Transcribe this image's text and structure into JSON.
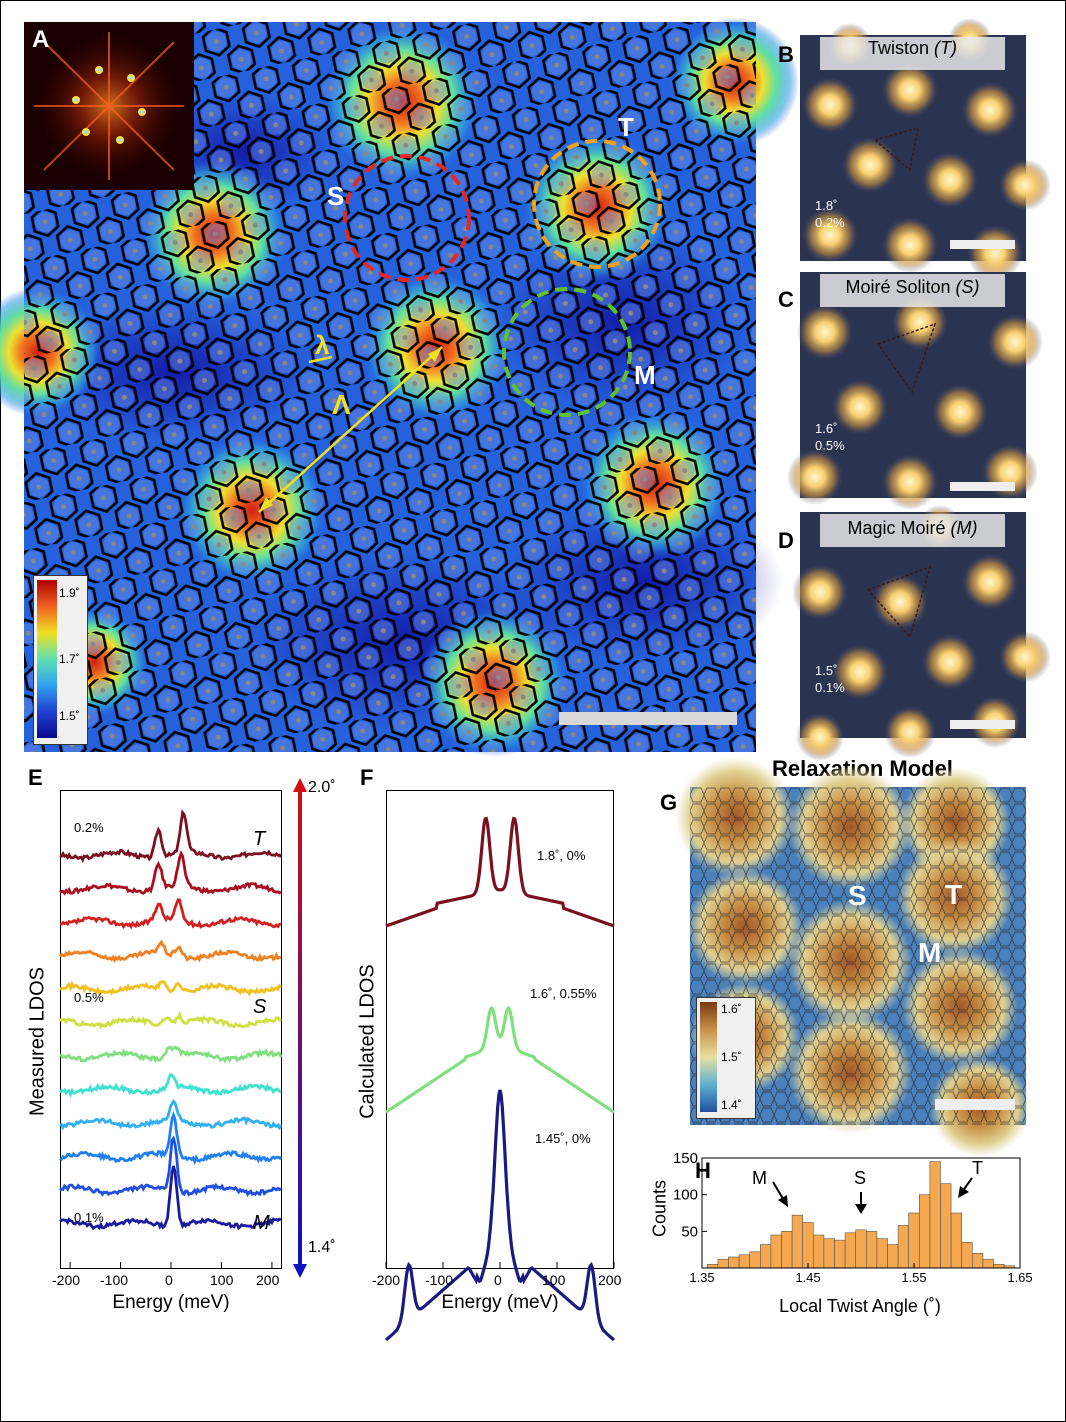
{
  "panels": {
    "A": {
      "letter": "A",
      "labels": {
        "S": "S",
        "T": "T",
        "M": "M",
        "lambda_small": "λ",
        "lambda_big": "Λ"
      },
      "colorbar": {
        "ticks": [
          "1.9˚",
          "1.7˚",
          "1.5˚"
        ],
        "colors": [
          "#c80000",
          "#f08020",
          "#f0e020",
          "#40d0e0",
          "#2040d0",
          "#0a0aa0"
        ]
      }
    },
    "B": {
      "letter": "B",
      "title": "Twiston ",
      "title_em": "(T)",
      "angle": "1.8˚",
      "strain": "0.2%"
    },
    "C": {
      "letter": "C",
      "title": "Moiré Soliton ",
      "title_em": "(S)",
      "angle": "1.6˚",
      "strain": "0.5%"
    },
    "D": {
      "letter": "D",
      "title": "Magic Moiré ",
      "title_em": "(M)",
      "angle": "1.5˚",
      "strain": "0.1%"
    },
    "E": {
      "letter": "E",
      "ylabel": "Measured LDOS",
      "xlabel": "Energy (meV)",
      "xticks": [
        "-200",
        "-100",
        "0",
        "100",
        "200"
      ],
      "labels": {
        "top": "0.2%",
        "mid": "0.5%",
        "bottom": "0.1%",
        "T": "T",
        "S": "S",
        "M": "M"
      },
      "arrow_top": "2.0˚",
      "arrow_bottom": "1.4˚"
    },
    "F": {
      "letter": "F",
      "ylabel": "Calculated LDOS",
      "xlabel": "Energy (meV)",
      "xticks": [
        "-200",
        "-100",
        "0",
        "100",
        "200"
      ],
      "curves": [
        "1.8˚, 0%",
        "1.6˚, 0.55%",
        "1.45˚, 0%"
      ]
    },
    "G": {
      "letter": "G",
      "title": "Relaxation Model",
      "labels": {
        "S": "S",
        "T": "T",
        "M": "M"
      },
      "colorbar": {
        "ticks": [
          "1.6˚",
          "1.5˚",
          "1.4˚"
        ]
      }
    },
    "H": {
      "letter": "H",
      "ylabel": "Counts",
      "xlabel": "Local Twist Angle (˚)",
      "annotations": {
        "M": "M",
        "S": "S",
        "T": "T"
      }
    }
  },
  "chart_data": [
    {
      "type": "bar",
      "panel": "H",
      "x": [
        1.36,
        1.37,
        1.38,
        1.39,
        1.4,
        1.41,
        1.42,
        1.43,
        1.44,
        1.45,
        1.46,
        1.47,
        1.48,
        1.49,
        1.5,
        1.51,
        1.52,
        1.53,
        1.54,
        1.55,
        1.56,
        1.57,
        1.58,
        1.59,
        1.6,
        1.61,
        1.62,
        1.63,
        1.64
      ],
      "values": [
        5,
        12,
        15,
        18,
        22,
        32,
        45,
        50,
        72,
        62,
        45,
        40,
        38,
        48,
        52,
        50,
        40,
        32,
        58,
        75,
        100,
        145,
        115,
        75,
        35,
        20,
        12,
        5,
        3
      ],
      "xlim": [
        1.35,
        1.65
      ],
      "ylim": [
        0,
        150
      ],
      "xticks": [
        1.35,
        1.45,
        1.55,
        1.65
      ],
      "yticks": [
        50,
        100,
        150
      ],
      "xlabel": "Local Twist Angle (˚)",
      "ylabel": "Counts",
      "color": "#f5a850"
    },
    {
      "type": "line",
      "panel": "F",
      "xlim": [
        -200,
        200
      ],
      "series": [
        {
          "name": "1.8˚, 0%",
          "color": "#7a1020",
          "peaks": [
            [
              -25,
              75,
              10
            ],
            [
              25,
              75,
              10
            ]
          ]
        },
        {
          "name": "1.6˚, 0.55%",
          "color": "#80e080",
          "peaks": [
            [
              -15,
              40,
              10
            ],
            [
              15,
              40,
              10
            ]
          ]
        },
        {
          "name": "1.45˚, 0%",
          "color": "#1a1a80",
          "peaks": [
            [
              0,
              150,
              12
            ],
            [
              -160,
              55,
              10
            ],
            [
              160,
              55,
              10
            ]
          ]
        }
      ]
    },
    {
      "type": "line",
      "panel": "E",
      "xlim": [
        -220,
        220
      ],
      "series": [
        {
          "color": "#7a1020",
          "peaks": [
            [
              -25,
              28
            ],
            [
              25,
              40
            ]
          ]
        },
        {
          "color": "#a81020",
          "peaks": [
            [
              -25,
              25
            ],
            [
              20,
              32
            ]
          ]
        },
        {
          "color": "#d02020",
          "peaks": [
            [
              -25,
              16
            ],
            [
              15,
              20
            ]
          ]
        },
        {
          "color": "#f08020",
          "peaks": [
            [
              -20,
              10
            ],
            [
              15,
              10
            ]
          ]
        },
        {
          "color": "#f0c020",
          "peaks": [
            [
              -15,
              8
            ],
            [
              15,
              8
            ]
          ]
        },
        {
          "color": "#d0e040",
          "peaks": [
            [
              -10,
              8
            ],
            [
              15,
              8
            ]
          ]
        },
        {
          "color": "#80e080",
          "peaks": [
            [
              -5,
              8
            ],
            [
              10,
              8
            ]
          ]
        },
        {
          "color": "#40e0d0",
          "peaks": [
            [
              0,
              12
            ]
          ]
        },
        {
          "color": "#30b0f0",
          "peaks": [
            [
              5,
              20
            ]
          ]
        },
        {
          "color": "#2080f0",
          "peaks": [
            [
              5,
              40
            ]
          ]
        },
        {
          "color": "#2050e0",
          "peaks": [
            [
              5,
              55
            ]
          ]
        },
        {
          "color": "#1a1aa0",
          "peaks": [
            [
              5,
              60
            ]
          ]
        }
      ]
    }
  ]
}
